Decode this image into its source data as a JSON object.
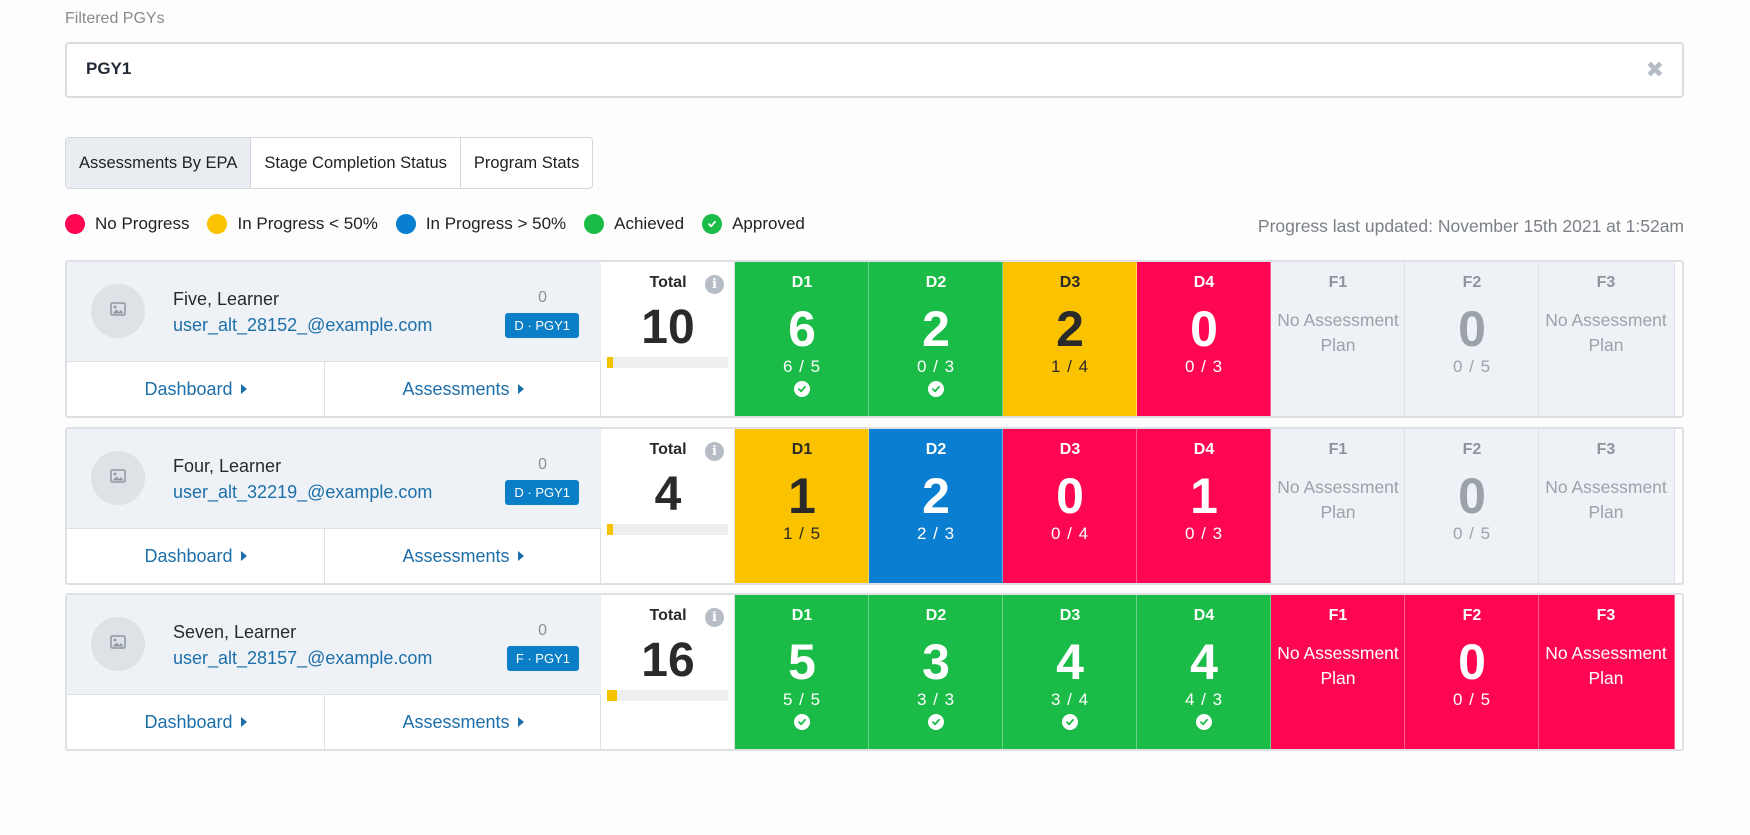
{
  "filter": {
    "label": "Filtered PGYs",
    "value": "PGY1",
    "clear_icon": "close-icon"
  },
  "tabs": [
    {
      "label": "Assessments By EPA",
      "active": true
    },
    {
      "label": "Stage Completion Status",
      "active": false
    },
    {
      "label": "Program Stats",
      "active": false
    }
  ],
  "legend": [
    {
      "label": "No Progress",
      "color": "#ff0652",
      "check": false
    },
    {
      "label": "In Progress < 50%",
      "color": "#fbc200",
      "check": false
    },
    {
      "label": "In Progress > 50%",
      "color": "#0a7fd1",
      "check": false
    },
    {
      "label": "Achieved",
      "color": "#1abc47",
      "check": false
    },
    {
      "label": "Approved",
      "color": "#1abc47",
      "check": true
    }
  ],
  "updated": "Progress last updated: November 15th 2021 at 1:52am",
  "links": {
    "dashboard": "Dashboard",
    "assessments": "Assessments"
  },
  "total_label": "Total",
  "no_plan_text": "No Assessment Plan",
  "learners": [
    {
      "name": "Five, Learner",
      "email": "user_alt_28152_@example.com",
      "count": "0",
      "badge": "D · PGY1",
      "total": "10",
      "progress": 0.05,
      "stages": [
        {
          "code": "D1",
          "value": "6",
          "frac": "6 / 5",
          "status": "green",
          "approved": true
        },
        {
          "code": "D2",
          "value": "2",
          "frac": "0 / 3",
          "status": "green",
          "approved": true
        },
        {
          "code": "D3",
          "value": "2",
          "frac": "1 / 4",
          "status": "yellow",
          "approved": false
        },
        {
          "code": "D4",
          "value": "0",
          "frac": "0 / 3",
          "status": "red",
          "approved": false
        },
        {
          "code": "F1",
          "plan": false,
          "status": "grey"
        },
        {
          "code": "F2",
          "value": "0",
          "frac": "0 / 5",
          "status": "grey",
          "approved": false
        },
        {
          "code": "F3",
          "plan": false,
          "status": "grey"
        }
      ]
    },
    {
      "name": "Four, Learner",
      "email": "user_alt_32219_@example.com",
      "count": "0",
      "badge": "D · PGY1",
      "total": "4",
      "progress": 0.05,
      "stages": [
        {
          "code": "D1",
          "value": "1",
          "frac": "1 / 5",
          "status": "yellow",
          "approved": false
        },
        {
          "code": "D2",
          "value": "2",
          "frac": "2 / 3",
          "status": "blue",
          "approved": false
        },
        {
          "code": "D3",
          "value": "0",
          "frac": "0 / 4",
          "status": "red",
          "approved": false
        },
        {
          "code": "D4",
          "value": "1",
          "frac": "0 / 3",
          "status": "red",
          "approved": false
        },
        {
          "code": "F1",
          "plan": false,
          "status": "grey"
        },
        {
          "code": "F2",
          "value": "0",
          "frac": "0 / 5",
          "status": "grey",
          "approved": false
        },
        {
          "code": "F3",
          "plan": false,
          "status": "grey"
        }
      ]
    },
    {
      "name": "Seven, Learner",
      "email": "user_alt_28157_@example.com",
      "count": "0",
      "badge": "F · PGY1",
      "total": "16",
      "progress": 0.08,
      "stages": [
        {
          "code": "D1",
          "value": "5",
          "frac": "5 / 5",
          "status": "green",
          "approved": true
        },
        {
          "code": "D2",
          "value": "3",
          "frac": "3 / 3",
          "status": "green",
          "approved": true
        },
        {
          "code": "D3",
          "value": "4",
          "frac": "3 / 4",
          "status": "green",
          "approved": true
        },
        {
          "code": "D4",
          "value": "4",
          "frac": "4 / 3",
          "status": "green",
          "approved": true
        },
        {
          "code": "F1",
          "plan": false,
          "status": "red"
        },
        {
          "code": "F2",
          "value": "0",
          "frac": "0 / 5",
          "status": "red",
          "approved": false
        },
        {
          "code": "F3",
          "plan": false,
          "status": "red"
        }
      ]
    }
  ]
}
